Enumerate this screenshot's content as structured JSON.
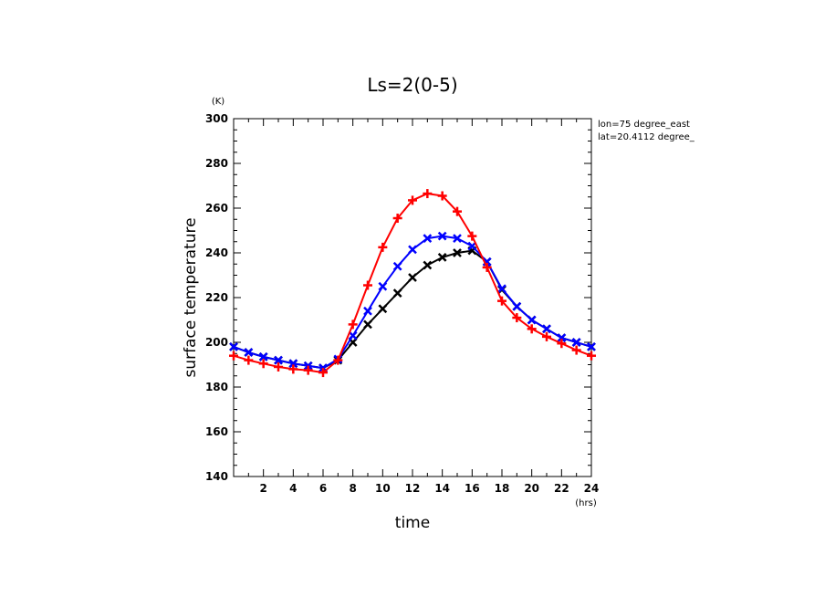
{
  "chart_data": {
    "type": "line",
    "title": "Ls=2(0-5)",
    "xlabel": "time",
    "ylabel": "surface temperature",
    "x_unit": "(hrs)",
    "y_unit": "(K)",
    "xlim": [
      0,
      24
    ],
    "ylim": [
      140,
      300
    ],
    "x_ticks": [
      2,
      4,
      6,
      8,
      10,
      12,
      14,
      16,
      18,
      20,
      22,
      24
    ],
    "y_ticks": [
      140,
      160,
      180,
      200,
      220,
      240,
      260,
      280,
      300
    ],
    "annotations": [
      "lon=75 degree_east",
      "lat=20.4112 degree_"
    ],
    "grid": false,
    "series": [
      {
        "color": "#000000",
        "marker": "x",
        "x": [
          0,
          1,
          2,
          3,
          4,
          5,
          6,
          7,
          8,
          9,
          10,
          11,
          12,
          13,
          14,
          15,
          16,
          17,
          18,
          19,
          20,
          21,
          22,
          23,
          24
        ],
        "values": [
          198,
          195.5,
          193.5,
          192,
          190.5,
          189.5,
          188.5,
          192,
          200,
          208,
          215,
          222,
          229,
          234.5,
          238,
          240,
          241,
          236,
          223.5,
          216,
          210,
          206,
          202,
          200,
          198
        ]
      },
      {
        "color": "#0000ff",
        "marker": "x",
        "x": [
          0,
          1,
          2,
          3,
          4,
          5,
          6,
          7,
          8,
          9,
          10,
          11,
          12,
          13,
          14,
          15,
          16,
          17,
          18,
          19,
          20,
          21,
          22,
          23,
          24
        ],
        "values": [
          198,
          195.5,
          193.5,
          192,
          190.5,
          189.5,
          188.5,
          192.5,
          203,
          214,
          225,
          234,
          241.5,
          246.5,
          247.5,
          246.5,
          243,
          236,
          224,
          216,
          210,
          206,
          202,
          200,
          198
        ]
      },
      {
        "color": "#ff0000",
        "marker": "+",
        "x": [
          0,
          1,
          2,
          3,
          4,
          5,
          6,
          7,
          8,
          9,
          10,
          11,
          12,
          13,
          14,
          15,
          16,
          17,
          18,
          19,
          20,
          21,
          22,
          23,
          24
        ],
        "values": [
          194,
          192,
          190.5,
          189,
          188,
          187.5,
          186.5,
          192,
          208,
          225.5,
          242.5,
          255.5,
          263.5,
          266.5,
          265.5,
          258.5,
          247.5,
          233.5,
          218.5,
          211,
          206,
          202.5,
          199.5,
          196.5,
          194
        ]
      }
    ]
  }
}
